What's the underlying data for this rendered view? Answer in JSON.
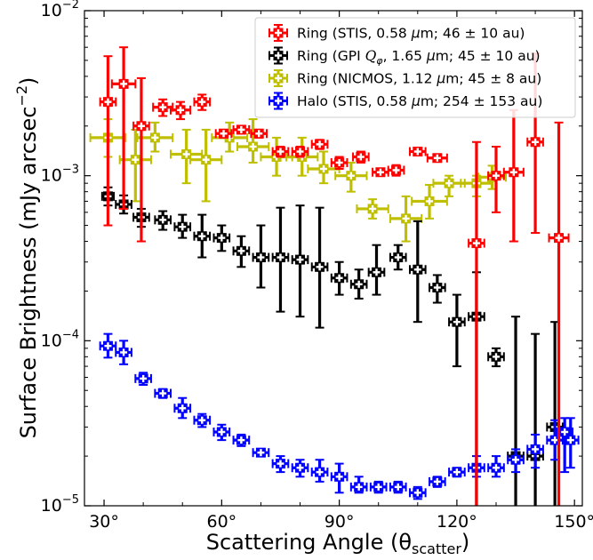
{
  "chart_data": {
    "type": "scatter",
    "title": "",
    "xlabel": "Scattering Angle (θ",
    "xlabel_sub": "scatter",
    "xlabel_close": ")",
    "ylabel": "Surface Brightness (mJy arcsec",
    "ylabel_sup": "−2",
    "ylabel_close": ")",
    "yscale": "log",
    "xlim": [
      25,
      152
    ],
    "ylim": [
      1e-05,
      0.01
    ],
    "xticks": [
      {
        "value": 30,
        "label": "30°"
      },
      {
        "value": 60,
        "label": "60°"
      },
      {
        "value": 90,
        "label": "90°"
      },
      {
        "value": 120,
        "label": "120°"
      },
      {
        "value": 150,
        "label": "150°"
      }
    ],
    "yticks": [
      {
        "value": 1e-05,
        "base": "10",
        "exp": "−5"
      },
      {
        "value": 0.0001,
        "base": "10",
        "exp": "−4"
      },
      {
        "value": 0.001,
        "base": "10",
        "exp": "−3"
      },
      {
        "value": 0.01,
        "base": "10",
        "exp": "−2"
      }
    ],
    "grid": false,
    "legend_position": "top-right",
    "series": [
      {
        "name": "Ring (STIS, 0.58 μm; 46 ± 10 au)",
        "legend": {
          "pre": "Ring (STIS, 0.58 ",
          "mu": "μ",
          "post": "m; 46 ± 10 au)"
        },
        "color": "#ff0000",
        "marker": "pixel-square",
        "points": [
          [
            31,
            0.0028,
            0.0005,
            0.0053,
            2
          ],
          [
            35,
            0.0036,
            0.00063,
            0.006,
            3
          ],
          [
            39.5,
            0.002,
            0.0004,
            0.0039,
            2
          ],
          [
            45,
            0.0026,
            0.0023,
            0.0029,
            2.5
          ],
          [
            49.5,
            0.0025,
            0.0022,
            0.0028,
            2.5
          ],
          [
            55,
            0.0028,
            0.0025,
            0.0031,
            2
          ],
          [
            60.5,
            0.0018,
            0.0017,
            0.0019,
            2
          ],
          [
            65,
            0.0019,
            0.0018,
            0.002,
            2
          ],
          [
            69.5,
            0.0018,
            0.0017,
            0.0019,
            2
          ],
          [
            75,
            0.0014,
            0.0013,
            0.0015,
            2
          ],
          [
            80,
            0.0014,
            0.0013,
            0.0015,
            2
          ],
          [
            85,
            0.00155,
            0.00145,
            0.00165,
            2
          ],
          [
            90,
            0.0012,
            0.0011,
            0.0013,
            2
          ],
          [
            95.5,
            0.0013,
            0.0012,
            0.0014,
            2
          ],
          [
            100.5,
            0.00105,
            0.001,
            0.0011,
            2
          ],
          [
            104.5,
            0.00108,
            0.001,
            0.00116,
            2
          ],
          [
            110,
            0.0014,
            0.00135,
            0.00145,
            2
          ],
          [
            115,
            0.00128,
            0.00122,
            0.00134,
            2.5
          ],
          [
            125,
            0.00039,
            1e-05,
            0.0016,
            2
          ],
          [
            130,
            0.001,
            0.0006,
            0.0015,
            2
          ],
          [
            134.5,
            0.00105,
            0.0004,
            0.0025,
            2.5
          ],
          [
            140,
            0.0016,
            0.00045,
            0.0055,
            2
          ],
          [
            146,
            0.00042,
            1e-05,
            0.0021,
            2.5
          ]
        ]
      },
      {
        "name": "Ring (GPI Q_φ, 1.65 μm; 45 ± 10 au)",
        "legend": {
          "pre": "Ring (GPI ",
          "q": "Q",
          "phi": "φ",
          "mid": ", 1.65 ",
          "mu": "μ",
          "post": "m; 45 ± 10 au)"
        },
        "color": "#000000",
        "marker": "pixel-square",
        "points": [
          [
            31,
            0.00075,
            0.00066,
            0.00085,
            1.5
          ],
          [
            35,
            0.00067,
            0.00059,
            0.00076,
            2
          ],
          [
            39.5,
            0.00056,
            0.00049,
            0.00063,
            2
          ],
          [
            45,
            0.00054,
            0.00047,
            0.00061,
            2
          ],
          [
            50,
            0.00049,
            0.00042,
            0.00058,
            2
          ],
          [
            55,
            0.00043,
            0.00032,
            0.00058,
            2
          ],
          [
            60,
            0.00042,
            0.00035,
            0.0005,
            2
          ],
          [
            65,
            0.00035,
            0.00028,
            0.00043,
            2
          ],
          [
            70,
            0.00032,
            0.00021,
            0.0005,
            2
          ],
          [
            75,
            0.00032,
            0.00015,
            0.00064,
            2
          ],
          [
            80,
            0.00031,
            0.00014,
            0.00066,
            2
          ],
          [
            85,
            0.00028,
            0.00012,
            0.00064,
            2
          ],
          [
            90,
            0.00024,
            0.00019,
            0.0003,
            2
          ],
          [
            95,
            0.00022,
            0.00018,
            0.00027,
            2
          ],
          [
            99.5,
            0.00026,
            0.00019,
            0.00038,
            2
          ],
          [
            105,
            0.00032,
            0.00027,
            0.00038,
            2
          ],
          [
            110,
            0.00027,
            0.00013,
            0.00053,
            2
          ],
          [
            115,
            0.00021,
            0.00017,
            0.00025,
            2
          ],
          [
            120,
            0.00013,
            7e-05,
            0.00019,
            2
          ],
          [
            125,
            0.00014,
            1e-05,
            0.00026,
            2
          ],
          [
            130,
            8e-05,
            7e-05,
            9e-05,
            2
          ],
          [
            135,
            2e-05,
            1e-05,
            0.00014,
            2
          ],
          [
            140,
            2e-05,
            1e-05,
            0.00011,
            2
          ],
          [
            145,
            3e-05,
            1e-05,
            0.00013,
            2
          ]
        ]
      },
      {
        "name": "Ring (NICMOS, 1.12 μm; 45 ± 8 au)",
        "legend": {
          "pre": "Ring (NICMOS, 1.12 ",
          "mu": "μ",
          "post": "m; 45 ± 8 au)"
        },
        "color": "#bfbf00",
        "marker": "pixel-square",
        "points": [
          [
            31,
            0.0017,
            0.0013,
            0.0022,
            4.5
          ],
          [
            38,
            0.00125,
            0.0007,
            0.0019,
            4
          ],
          [
            43,
            0.0017,
            0.0014,
            0.0021,
            4.5
          ],
          [
            51,
            0.00135,
            0.0009,
            0.0019,
            4
          ],
          [
            56,
            0.00125,
            0.0007,
            0.0019,
            4
          ],
          [
            62,
            0.0017,
            0.0014,
            0.0021,
            4.5
          ],
          [
            68,
            0.0015,
            0.0012,
            0.0022,
            4
          ],
          [
            74,
            0.0013,
            0.001,
            0.0017,
            4
          ],
          [
            80.5,
            0.0013,
            0.001,
            0.0017,
            4
          ],
          [
            86,
            0.0011,
            0.0009,
            0.0014,
            4
          ],
          [
            93,
            0.001,
            0.0008,
            0.0012,
            4
          ],
          [
            98.5,
            0.00063,
            0.00055,
            0.00072,
            4
          ],
          [
            107,
            0.00055,
            0.0004,
            0.00075,
            4
          ],
          [
            113,
            0.0007,
            0.00055,
            0.00088,
            4.5
          ],
          [
            118,
            0.0009,
            0.00075,
            0.001,
            4
          ],
          [
            125,
            0.0009,
            0.00075,
            0.001,
            4
          ],
          [
            129,
            0.00098,
            0.00083,
            0.00115,
            3.5
          ]
        ]
      },
      {
        "name": "Halo (STIS, 0.58 μm; 254 ± 153 au)",
        "legend": {
          "pre": "Halo (STIS, 0.58 ",
          "mu": "μ",
          "post": "m; 254 ± 153 au)"
        },
        "color": "#0000ff",
        "marker": "pixel-square",
        "points": [
          [
            31,
            9.3e-05,
            7.9e-05,
            0.00011,
            2
          ],
          [
            35,
            8.5e-05,
            7.2e-05,
            0.0001,
            2
          ],
          [
            40,
            5.9e-05,
            5.4e-05,
            6.4e-05,
            2
          ],
          [
            45,
            4.8e-05,
            4.5e-05,
            5.1e-05,
            2
          ],
          [
            50,
            3.9e-05,
            3.4e-05,
            4.5e-05,
            2
          ],
          [
            55,
            3.3e-05,
            3e-05,
            3.6e-05,
            2
          ],
          [
            60,
            2.8e-05,
            2.5e-05,
            3.1e-05,
            2
          ],
          [
            65,
            2.5e-05,
            2.3e-05,
            2.7e-05,
            2
          ],
          [
            70,
            2.1e-05,
            2e-05,
            2.2e-05,
            2
          ],
          [
            75,
            1.8e-05,
            1.6e-05,
            2e-05,
            2
          ],
          [
            80,
            1.7e-05,
            1.5e-05,
            1.9e-05,
            2
          ],
          [
            85,
            1.6e-05,
            1.4e-05,
            1.9e-05,
            2
          ],
          [
            90,
            1.5e-05,
            1.2e-05,
            1.8e-05,
            2
          ],
          [
            95,
            1.3e-05,
            1.2e-05,
            1.5e-05,
            2
          ],
          [
            100,
            1.3e-05,
            1.2e-05,
            1.4e-05,
            2
          ],
          [
            105,
            1.3e-05,
            1.2e-05,
            1.4e-05,
            2
          ],
          [
            110,
            1.2e-05,
            1.1e-05,
            1.3e-05,
            2
          ],
          [
            115,
            1.4e-05,
            1.3e-05,
            1.5e-05,
            2
          ],
          [
            120,
            1.6e-05,
            1.5e-05,
            1.7e-05,
            2
          ],
          [
            125,
            1.7e-05,
            1.5e-05,
            2e-05,
            2
          ],
          [
            130,
            1.7e-05,
            1.5e-05,
            2e-05,
            2
          ],
          [
            135,
            1.9e-05,
            1.6e-05,
            2.2e-05,
            2
          ],
          [
            140,
            2.2e-05,
            1.7e-05,
            2.7e-05,
            2
          ],
          [
            145,
            2.5e-05,
            1.9e-05,
            3.3e-05,
            2
          ],
          [
            147.5,
            2.8e-05,
            1.6e-05,
            3.4e-05,
            2
          ],
          [
            149,
            2.5e-05,
            1.7e-05,
            3.4e-05,
            2
          ]
        ]
      }
    ]
  }
}
